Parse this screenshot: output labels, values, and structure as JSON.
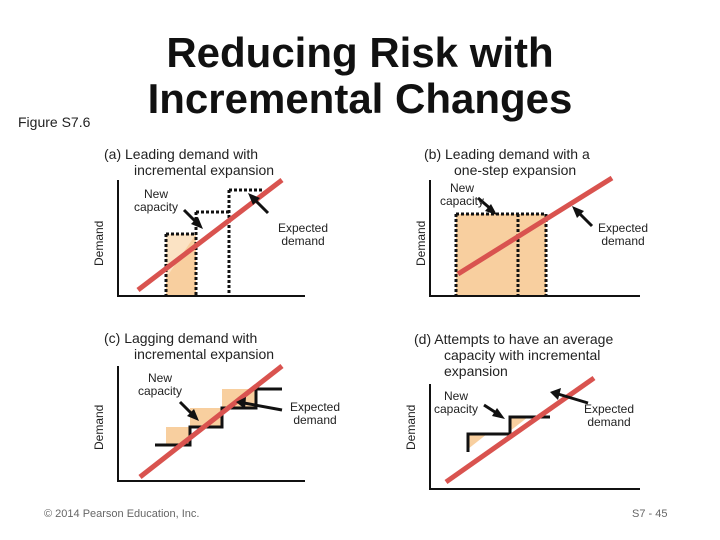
{
  "title_line1": "Reducing Risk with",
  "title_line2": "Incremental Changes",
  "figure_label": "Figure S7.6",
  "panels": [
    {
      "caption_line1": "(a)  Leading demand with",
      "caption_line2": "incremental expansion",
      "new_capacity_line1": "New",
      "new_capacity_line2": "capacity",
      "expected_line1": "Expected",
      "expected_line2": "demand",
      "y_axis": "Demand"
    },
    {
      "caption_line1": "(b)  Leading demand with a",
      "caption_line2": "one-step expansion",
      "new_capacity_line1": "New",
      "new_capacity_line2": "capacity",
      "expected_line1": "Expected",
      "expected_line2": "demand",
      "y_axis": "Demand"
    },
    {
      "caption_line1": "(c)  Lagging demand with",
      "caption_line2": "incremental expansion",
      "new_capacity_line1": "New",
      "new_capacity_line2": "capacity",
      "expected_line1": "Expected",
      "expected_line2": "demand",
      "y_axis": "Demand"
    },
    {
      "caption_line1": "(d)  Attempts to have an average",
      "caption_line2": "capacity with incremental",
      "caption_line3": "expansion",
      "new_capacity_line1": "New",
      "new_capacity_line2": "capacity",
      "expected_line1": "Expected",
      "expected_line2": "demand",
      "y_axis": "Demand"
    }
  ],
  "copyright": "© 2014 Pearson Education, Inc.",
  "page_number": "S7 - 45",
  "colors": {
    "demand_line": "#d9534f",
    "shaded_area": "#f8cf9f",
    "axis": "#111111"
  }
}
